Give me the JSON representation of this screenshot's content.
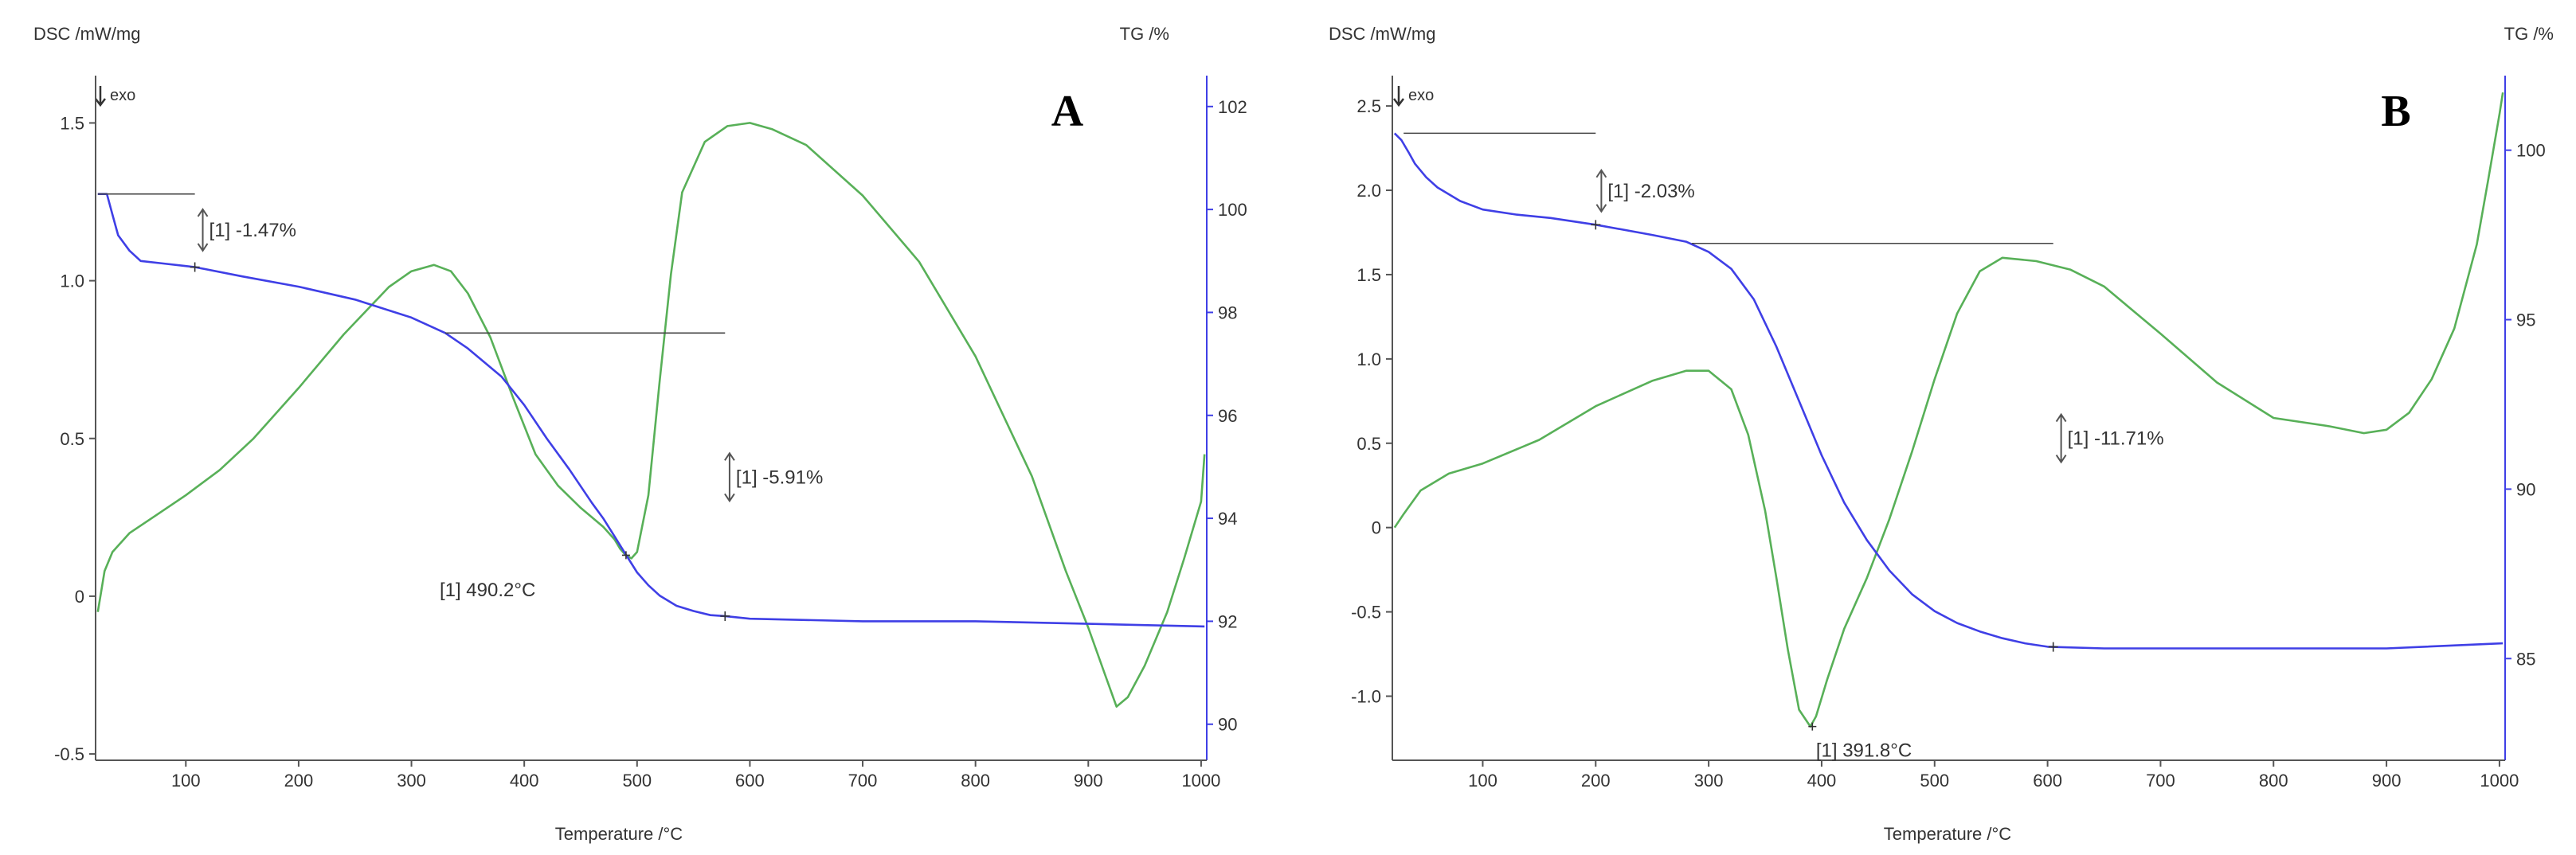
{
  "chart_data": [
    {
      "type": "line",
      "panel": "A",
      "exo_label": "exo",
      "xlabel": "Temperature /°C",
      "ylabel_left": "DSC /mW/mg",
      "ylabel_right": "TG /%",
      "xlim": [
        20,
        1005
      ],
      "ylim_left": [
        -0.52,
        1.65
      ],
      "ylim_right": [
        89.3,
        102.6
      ],
      "xticks": [
        100,
        200,
        300,
        400,
        500,
        600,
        700,
        800,
        900,
        1000
      ],
      "xtick_labels": [
        "100",
        "200",
        "300",
        "400",
        "500",
        "600",
        "700",
        "800",
        "900",
        "1000"
      ],
      "yticks_left": [
        -0.5,
        0,
        0.5,
        1.0,
        1.5
      ],
      "ytick_labels_left": [
        "-0.5",
        "0",
        "0.5",
        "1.0",
        "1.5"
      ],
      "yticks_right": [
        90,
        92,
        94,
        96,
        98,
        100,
        102
      ],
      "ytick_labels_right": [
        "90",
        "92",
        "94",
        "96",
        "98",
        "100",
        "102"
      ],
      "colors": {
        "dsc": "#58b058",
        "tg": "#3f3fe6",
        "axis_left": "#555555",
        "axis_right": "#3f3fe6",
        "annotation": "#555555"
      },
      "series": [
        {
          "name": "DSC",
          "axis": "left",
          "x": [
            22,
            28,
            35,
            50,
            75,
            100,
            130,
            160,
            200,
            240,
            280,
            300,
            320,
            335,
            350,
            370,
            390,
            410,
            430,
            450,
            470,
            480,
            485,
            490,
            495,
            500,
            510,
            520,
            530,
            540,
            560,
            580,
            600,
            620,
            650,
            700,
            750,
            800,
            850,
            880,
            900,
            915,
            925,
            935,
            950,
            970,
            985,
            1000,
            1003
          ],
          "y": [
            -0.05,
            0.08,
            0.14,
            0.2,
            0.26,
            0.32,
            0.4,
            0.5,
            0.66,
            0.83,
            0.98,
            1.03,
            1.05,
            1.03,
            0.96,
            0.82,
            0.63,
            0.45,
            0.35,
            0.28,
            0.22,
            0.18,
            0.15,
            0.13,
            0.12,
            0.14,
            0.32,
            0.68,
            1.02,
            1.28,
            1.44,
            1.49,
            1.5,
            1.48,
            1.43,
            1.27,
            1.06,
            0.76,
            0.38,
            0.08,
            -0.1,
            -0.25,
            -0.35,
            -0.32,
            -0.22,
            -0.05,
            0.12,
            0.3,
            0.45
          ]
        },
        {
          "name": "TG",
          "axis": "right",
          "x": [
            22,
            30,
            35,
            40,
            50,
            60,
            80,
            100,
            108,
            150,
            200,
            250,
            300,
            330,
            350,
            380,
            400,
            420,
            440,
            460,
            470,
            480,
            490,
            500,
            510,
            520,
            535,
            550,
            565,
            578,
            600,
            700,
            800,
            900,
            1003
          ],
          "y": [
            100.3,
            100.3,
            99.9,
            99.5,
            99.2,
            99.0,
            98.95,
            98.9,
            98.88,
            98.7,
            98.5,
            98.25,
            97.9,
            97.6,
            97.3,
            96.75,
            96.2,
            95.55,
            94.95,
            94.3,
            94.0,
            93.65,
            93.3,
            92.95,
            92.7,
            92.5,
            92.3,
            92.2,
            92.12,
            92.1,
            92.05,
            92.0,
            92.0,
            91.95,
            91.9
          ]
        }
      ],
      "annotations": [
        {
          "text": "[1] -1.47%",
          "x": 115,
          "y_right": 99.6
        },
        {
          "text": "[1] -5.91%",
          "x": 582,
          "y_right": 94.8
        },
        {
          "text": "[1] 490.2°C",
          "x": 325,
          "y_left": 0.02
        }
      ]
    },
    {
      "type": "line",
      "panel": "B",
      "exo_label": "exo",
      "xlabel": "Temperature /°C",
      "ylabel_left": "DSC /mW/mg",
      "ylabel_right": "TG /%",
      "xlim": [
        20,
        1005
      ],
      "ylim_left": [
        -1.38,
        2.68
      ],
      "ylim_right": [
        82.0,
        102.2
      ],
      "xticks": [
        100,
        200,
        300,
        400,
        500,
        600,
        700,
        800,
        900,
        1000
      ],
      "xtick_labels": [
        "100",
        "200",
        "300",
        "400",
        "500",
        "600",
        "700",
        "800",
        "900",
        "1000"
      ],
      "yticks_left": [
        -1.0,
        -0.5,
        0,
        0.5,
        1.0,
        1.5,
        2.0,
        2.5
      ],
      "ytick_labels_left": [
        "-1.0",
        "-0.5",
        "0",
        "0.5",
        "1.0",
        "1.5",
        "2.0",
        "2.5"
      ],
      "yticks_right": [
        85,
        90,
        95,
        100
      ],
      "ytick_labels_right": [
        "85",
        "90",
        "95",
        "100"
      ],
      "colors": {
        "dsc": "#58b058",
        "tg": "#3f3fe6",
        "axis_left": "#555555",
        "axis_right": "#3f3fe6",
        "annotation": "#555555"
      },
      "series": [
        {
          "name": "DSC",
          "axis": "left",
          "x": [
            22,
            30,
            45,
            70,
            100,
            150,
            200,
            250,
            280,
            300,
            320,
            335,
            350,
            360,
            370,
            380,
            390,
            395,
            405,
            420,
            440,
            460,
            480,
            500,
            520,
            540,
            560,
            590,
            620,
            650,
            700,
            750,
            800,
            850,
            880,
            900,
            920,
            940,
            960,
            980,
            990,
            1000,
            1003
          ],
          "y": [
            0.0,
            0.08,
            0.22,
            0.32,
            0.38,
            0.52,
            0.72,
            0.87,
            0.93,
            0.93,
            0.82,
            0.55,
            0.1,
            -0.3,
            -0.72,
            -1.08,
            -1.18,
            -1.12,
            -0.9,
            -0.6,
            -0.3,
            0.05,
            0.45,
            0.88,
            1.27,
            1.52,
            1.6,
            1.58,
            1.53,
            1.43,
            1.15,
            0.86,
            0.65,
            0.6,
            0.56,
            0.58,
            0.68,
            0.88,
            1.18,
            1.68,
            2.06,
            2.45,
            2.58
          ]
        },
        {
          "name": "TG",
          "axis": "right",
          "x": [
            22,
            28,
            35,
            40,
            50,
            60,
            80,
            100,
            130,
            160,
            200,
            250,
            280,
            300,
            320,
            340,
            360,
            380,
            400,
            420,
            440,
            460,
            480,
            500,
            520,
            540,
            560,
            580,
            600,
            650,
            700,
            800,
            900,
            1003
          ],
          "y": [
            100.5,
            100.3,
            99.9,
            99.6,
            99.2,
            98.9,
            98.5,
            98.25,
            98.1,
            98.0,
            97.8,
            97.5,
            97.3,
            97.0,
            96.5,
            95.6,
            94.2,
            92.6,
            91.0,
            89.6,
            88.5,
            87.6,
            86.9,
            86.4,
            86.05,
            85.8,
            85.6,
            85.45,
            85.35,
            85.3,
            85.3,
            85.3,
            85.3,
            85.45
          ]
        }
      ],
      "annotations": [
        {
          "text": "[1] -2.03%",
          "x": 205,
          "y_right": 98.8
        },
        {
          "text": "[1] -11.71%",
          "x": 612,
          "y_right": 91.5
        },
        {
          "text": "[1] 391.8°C",
          "x": 395,
          "y_left": -1.32
        }
      ]
    }
  ]
}
